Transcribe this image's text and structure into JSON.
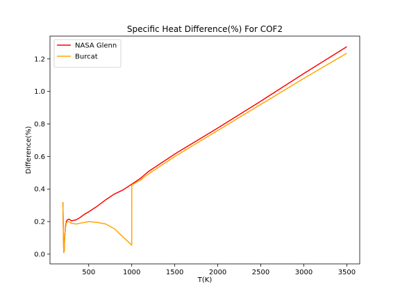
{
  "chart_data": {
    "type": "line",
    "title": "Specific Heat Difference(%) For COF2",
    "xlabel": "T(K)",
    "ylabel": "Difference(%)",
    "xlim": [
      50,
      3650
    ],
    "ylim": [
      -0.06,
      1.34
    ],
    "xticks": [
      500,
      1000,
      1500,
      2000,
      2500,
      3000,
      3500
    ],
    "yticks": [
      0.0,
      0.2,
      0.4,
      0.6,
      0.8,
      1.0,
      1.2
    ],
    "grid": false,
    "legend_position": "top-left",
    "series": [
      {
        "name": "NASA Glenn",
        "color": "#ff0000",
        "x": [
          200,
          205,
          210,
          215,
          220,
          230,
          240,
          250,
          270,
          300,
          350,
          400,
          450,
          500,
          600,
          700,
          800,
          900,
          1000,
          1100,
          1200,
          1500,
          2000,
          2500,
          3000,
          3500
        ],
        "y": [
          0.32,
          0.15,
          0.01,
          0.02,
          0.1,
          0.17,
          0.2,
          0.21,
          0.215,
          0.205,
          0.21,
          0.225,
          0.245,
          0.26,
          0.295,
          0.335,
          0.37,
          0.395,
          0.43,
          0.465,
          0.51,
          0.615,
          0.775,
          0.94,
          1.11,
          1.275
        ]
      },
      {
        "name": "Burcat",
        "color": "#ffa500",
        "x": [
          200,
          205,
          210,
          215,
          220,
          230,
          240,
          250,
          270,
          300,
          350,
          400,
          450,
          500,
          600,
          700,
          800,
          900,
          1000,
          1000.5,
          1100,
          1200,
          1500,
          2000,
          2500,
          3000,
          3500
        ],
        "y": [
          0.32,
          0.15,
          0.01,
          0.02,
          0.1,
          0.16,
          0.19,
          0.2,
          0.2,
          0.19,
          0.185,
          0.19,
          0.195,
          0.2,
          0.195,
          0.185,
          0.155,
          0.105,
          0.055,
          0.425,
          0.455,
          0.495,
          0.6,
          0.76,
          0.92,
          1.08,
          1.235
        ]
      }
    ]
  }
}
